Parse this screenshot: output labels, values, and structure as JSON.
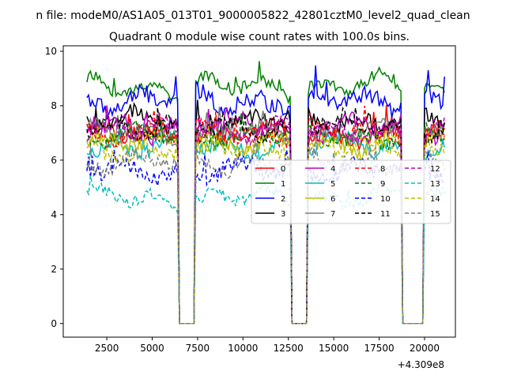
{
  "figure": {
    "suptitle": "n file: modeM0/AS1A05_013T01_9000005822_42801cztM0_level2_quad_clean"
  },
  "chart_data": {
    "type": "line",
    "title": "Quadrant 0 module wise count rates with 100.0s bins.",
    "xlabel": "",
    "ylabel": "",
    "x_offset_label": "+4.309e8",
    "xlim": [
      100,
      21700
    ],
    "ylim": [
      -0.5,
      10.2
    ],
    "xticks": [
      2500,
      5000,
      7500,
      10000,
      12500,
      15000,
      17500,
      20000
    ],
    "xtick_labels": [
      "2500",
      "5000",
      "7500",
      "10000",
      "12500",
      "15000",
      "17500",
      "20000"
    ],
    "yticks": [
      0,
      2,
      4,
      6,
      8,
      10
    ],
    "ytick_labels": [
      "0",
      "2",
      "4",
      "6",
      "8",
      "10"
    ],
    "grid": false,
    "legend_position": "center-right",
    "legend_columns": 4,
    "time_bins": {
      "start": 1400,
      "step": 100,
      "count": 198,
      "gaps": [
        [
          6500,
          7300
        ],
        [
          12700,
          13500
        ],
        [
          18800,
          19900
        ]
      ],
      "gap_value": 0
    },
    "series": [
      {
        "name": "0",
        "color": "#ff0000",
        "style": "solid",
        "mean": 6.9,
        "noise": 0.28
      },
      {
        "name": "1",
        "color": "#008000",
        "style": "solid",
        "mean": 8.7,
        "noise": 0.22
      },
      {
        "name": "2",
        "color": "#0000ff",
        "style": "solid",
        "mean": 8.2,
        "noise": 0.32
      },
      {
        "name": "3",
        "color": "#000000",
        "style": "solid",
        "mean": 7.4,
        "noise": 0.3
      },
      {
        "name": "4",
        "color": "#bf00bf",
        "style": "solid",
        "mean": 7.2,
        "noise": 0.28
      },
      {
        "name": "5",
        "color": "#00bfbf",
        "style": "solid",
        "mean": 6.5,
        "noise": 0.25
      },
      {
        "name": "6",
        "color": "#bfbf00",
        "style": "solid",
        "mean": 6.6,
        "noise": 0.25
      },
      {
        "name": "7",
        "color": "#808080",
        "style": "solid",
        "mean": 7.0,
        "noise": 0.25
      },
      {
        "name": "8",
        "color": "#ff0000",
        "style": "dashed",
        "mean": 7.0,
        "noise": 0.25
      },
      {
        "name": "9",
        "color": "#008000",
        "style": "dashed",
        "mean": 6.9,
        "noise": 0.25
      },
      {
        "name": "10",
        "color": "#0000ff",
        "style": "dashed",
        "mean": 5.6,
        "noise": 0.3
      },
      {
        "name": "11",
        "color": "#000000",
        "style": "dashed",
        "mean": 7.2,
        "noise": 0.25
      },
      {
        "name": "12",
        "color": "#bf00bf",
        "style": "dashed",
        "mean": 7.1,
        "noise": 0.25
      },
      {
        "name": "13",
        "color": "#00bfbf",
        "style": "dashed",
        "mean": 4.6,
        "noise": 0.22
      },
      {
        "name": "14",
        "color": "#bfbf00",
        "style": "dashed",
        "mean": 6.4,
        "noise": 0.25
      },
      {
        "name": "15",
        "color": "#808080",
        "style": "dashed",
        "mean": 5.9,
        "noise": 0.25
      }
    ]
  }
}
